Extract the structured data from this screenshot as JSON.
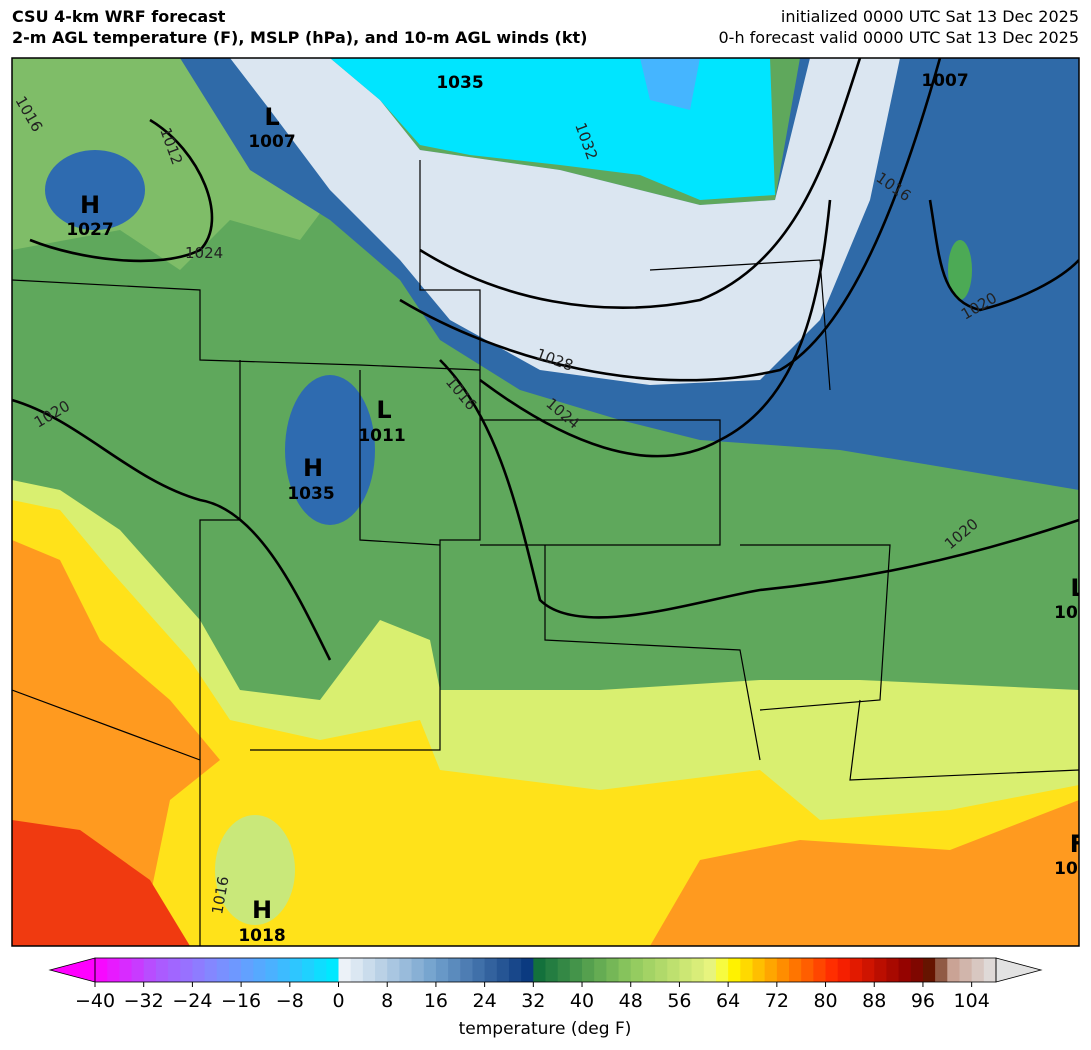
{
  "header": {
    "title_lines": [
      "CSU 4-km WRF forecast",
      "2-m AGL temperature (F), MSLP (hPa), and 10-m AGL winds (kt)"
    ],
    "valid_lines": [
      "initialized 0000 UTC Sat 13 Dec 2025",
      "0-h forecast valid 0000 UTC Sat 13 Dec 2025"
    ]
  },
  "map": {
    "pressure_centers": [
      {
        "symbol": "H",
        "value": "1027"
      },
      {
        "symbol": "L",
        "value": "1007"
      },
      {
        "value": "1035"
      },
      {
        "value": "1007"
      },
      {
        "symbol": "L",
        "value": "1011"
      },
      {
        "symbol": "H",
        "value": "1035"
      },
      {
        "symbol": "H",
        "value": "1018"
      },
      {
        "symbol": "L",
        "value": "10"
      },
      {
        "symbol": "F",
        "value": "10"
      }
    ],
    "isobar_labels": [
      "1016",
      "1012",
      "1024",
      "1020",
      "1028",
      "1016",
      "1024",
      "1032",
      "1016",
      "1020",
      "1020",
      "1016"
    ]
  },
  "colorbar": {
    "label": "temperature (deg F)",
    "range": [
      -40,
      108
    ],
    "step": 2,
    "ticks": [
      {
        "value": -40,
        "label": "−40"
      },
      {
        "value": -32,
        "label": "−32"
      },
      {
        "value": -24,
        "label": "−24"
      },
      {
        "value": -16,
        "label": "−16"
      },
      {
        "value": -8,
        "label": "−8"
      },
      0,
      8,
      16,
      24,
      32,
      40,
      48,
      56,
      64,
      72,
      80,
      88,
      96,
      104
    ],
    "stops": [
      {
        "value": -40,
        "color": "#ff00ff"
      },
      {
        "value": -30,
        "color": "#b055ff"
      },
      {
        "value": -20,
        "color": "#7f8cff"
      },
      {
        "value": -10,
        "color": "#45b5ff"
      },
      {
        "value": -1,
        "color": "#00e8ff"
      },
      {
        "value": 0,
        "color": "#f4f7fb"
      },
      {
        "value": 16,
        "color": "#6f9fcc"
      },
      {
        "value": 31,
        "color": "#0b3a80"
      },
      {
        "value": 32,
        "color": "#0b6b3a"
      },
      {
        "value": 48,
        "color": "#8ec95e"
      },
      {
        "value": 62,
        "color": "#eef780"
      },
      {
        "value": 64,
        "color": "#ffff00"
      },
      {
        "value": 72,
        "color": "#ff9900"
      },
      {
        "value": 82,
        "color": "#ff2200"
      },
      {
        "value": 94,
        "color": "#8b0000"
      },
      {
        "value": 98,
        "color": "#5a1a00"
      },
      {
        "value": 100,
        "color": "#c79a8a"
      },
      {
        "value": 108,
        "color": "#e2e2e2"
      }
    ]
  }
}
